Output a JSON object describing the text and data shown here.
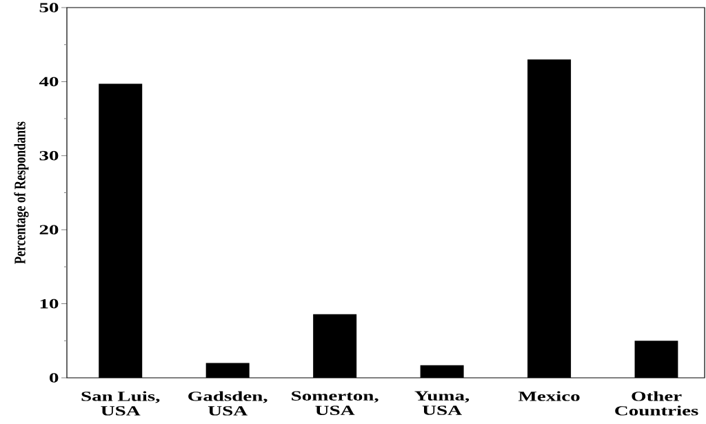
{
  "chart_data": {
    "type": "bar",
    "ylabel": "Percentage of Respondants",
    "categories": [
      "San Luis, USA",
      "Gadsden, USA",
      "Somerton, USA",
      "Yuma, USA",
      "Mexico",
      "Other Countries"
    ],
    "values": [
      39.7,
      2.0,
      8.6,
      1.7,
      43.0,
      5.0
    ],
    "color": "#000000",
    "ylim": [
      0,
      50
    ],
    "yticks": [
      0,
      {
        "value": 5,
        "label": null
      },
      10,
      {
        "value": 15,
        "label": null
      },
      20,
      {
        "value": 25,
        "label": null
      },
      30,
      {
        "value": 35,
        "label": null
      },
      40,
      {
        "value": 45,
        "label": null
      },
      50
    ]
  }
}
